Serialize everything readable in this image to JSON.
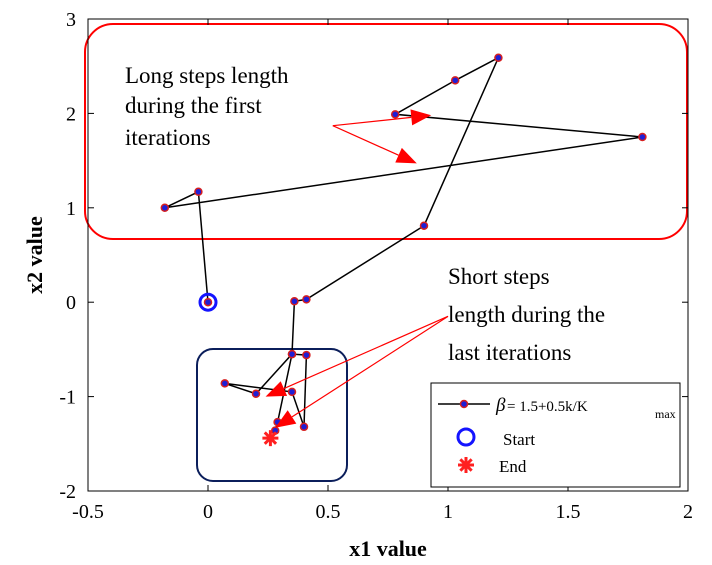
{
  "chart_data": {
    "type": "line",
    "title": "",
    "xlabel": "x1 value",
    "ylabel": "x2 value",
    "xlim": [
      -0.5,
      2
    ],
    "ylim": [
      -2,
      3
    ],
    "xticks": [
      "-0.5",
      "0",
      "0.5",
      "1",
      "1.5",
      "2"
    ],
    "yticks": [
      "-2",
      "-1",
      "0",
      "1",
      "2",
      "3"
    ],
    "grid": false,
    "series": [
      {
        "name": "β = 1.5+0.5k/K max",
        "color": "#000000",
        "marker_color": "#1f1fd6",
        "marker_edge": "#d61f1f",
        "points": [
          [
            0.0,
            0.0
          ],
          [
            -0.04,
            1.17
          ],
          [
            -0.18,
            1.0
          ],
          [
            1.81,
            1.75
          ],
          [
            0.78,
            1.99
          ],
          [
            1.03,
            2.35
          ],
          [
            1.21,
            2.59
          ],
          [
            0.9,
            0.81
          ],
          [
            0.41,
            0.03
          ],
          [
            0.36,
            0.01
          ],
          [
            0.35,
            -0.55
          ],
          [
            0.41,
            -0.56
          ],
          [
            0.4,
            -1.32
          ],
          [
            0.35,
            -0.95
          ],
          [
            0.07,
            -0.86
          ],
          [
            0.2,
            -0.97
          ],
          [
            0.35,
            -0.55
          ],
          [
            0.29,
            -1.27
          ],
          [
            0.28,
            -1.36
          ]
        ]
      }
    ],
    "start_point": {
      "label": "Start",
      "x": 0.0,
      "y": 0.0,
      "color": "#1414ff"
    },
    "end_point": {
      "label": "End",
      "x": 0.26,
      "y": -1.44,
      "color": "#ff2020"
    },
    "legend": {
      "placement": "bottom-right",
      "series_label_beta": "β",
      "series_label_formula": " = 1.5+0.5k/K",
      "series_label_sub": "max",
      "start_label": "Start",
      "end_label": "End"
    },
    "annotations": {
      "long_steps": {
        "lines": [
          "Long steps length",
          "during the first",
          "iterations"
        ],
        "box_color": "#ff0000",
        "arrow_color": "#ff0000",
        "arrow_source": [
          0.52,
          1.87
        ],
        "arrow_targets": [
          [
            0.93,
            1.98
          ],
          [
            0.87,
            1.47
          ]
        ]
      },
      "short_steps": {
        "lines": [
          "Short steps",
          "length during the",
          "last iterations"
        ],
        "box_color": "#0b1e5b",
        "arrow_color": "#ff0000",
        "arrow_source": [
          1.0,
          -0.15
        ],
        "arrow_targets": [
          [
            0.24,
            -1.0
          ],
          [
            0.28,
            -1.33
          ]
        ]
      }
    }
  }
}
